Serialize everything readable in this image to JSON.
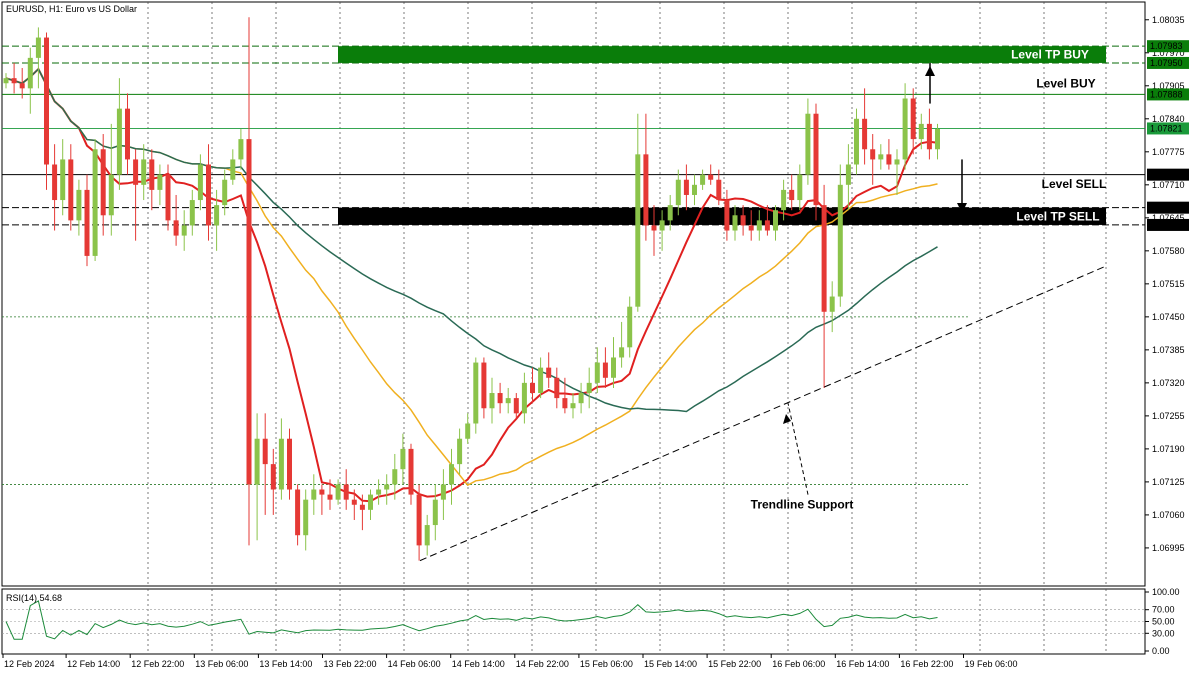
{
  "chart_data": {
    "type": "candlestick",
    "title": "EURUSD, H1:  Euro vs US Dollar",
    "y_range": [
      1.0692,
      1.0807
    ],
    "y_ticks": [
      "1.08035",
      "1.07970",
      "1.07905",
      "1.07840",
      "1.07775",
      "1.07710",
      "1.07645",
      "1.07580",
      "1.07515",
      "1.07450",
      "1.07385",
      "1.07320",
      "1.07255",
      "1.07190",
      "1.07125",
      "1.07060",
      "1.06995"
    ],
    "x_ticks": [
      "12 Feb 2024",
      "12 Feb 14:00",
      "12 Feb 22:00",
      "13 Feb 06:00",
      "13 Feb 14:00",
      "13 Feb 22:00",
      "14 Feb 06:00",
      "14 Feb 14:00",
      "14 Feb 22:00",
      "15 Feb 06:00",
      "15 Feb 14:00",
      "15 Feb 22:00",
      "16 Feb 06:00",
      "16 Feb 14:00",
      "16 Feb 22:00",
      "19 Feb 06:00"
    ],
    "levels": [
      {
        "name": "Level TP BUY",
        "price": "1.07983",
        "value": 1.07983,
        "color": "#008000"
      },
      {
        "name": "Level BUY",
        "price": "1.07888",
        "value": 1.07888,
        "color": "#008000"
      },
      {
        "name": "",
        "price": "1.07821",
        "value": 1.07821,
        "color": "#1a9a3a"
      },
      {
        "name": "Level SELL",
        "price": "1.07730",
        "value": 1.0773,
        "color": "#000000"
      },
      {
        "name": "",
        "price": "1.07665",
        "value": 1.07665,
        "color": "#000000"
      },
      {
        "name": "Level TP SELL",
        "price": "1.07631",
        "value": 1.07631,
        "color": "#000000"
      }
    ],
    "extra_price_labels": [
      "1.07950"
    ],
    "annotations": [
      "Trendline Support"
    ],
    "candles": [
      [
        1.0791,
        1.0793,
        1.079,
        1.0792
      ],
      [
        1.0792,
        1.0795,
        1.0789,
        1.0791
      ],
      [
        1.0791,
        1.0794,
        1.0788,
        1.079
      ],
      [
        1.079,
        1.0798,
        1.0785,
        1.0796
      ],
      [
        1.0796,
        1.0802,
        1.079,
        1.08
      ],
      [
        1.08,
        1.0801,
        1.077,
        1.0775
      ],
      [
        1.0775,
        1.0779,
        1.0762,
        1.0768
      ],
      [
        1.0768,
        1.078,
        1.0765,
        1.0776
      ],
      [
        1.0776,
        1.0779,
        1.0762,
        1.0764
      ],
      [
        1.0764,
        1.0772,
        1.0761,
        1.077
      ],
      [
        1.077,
        1.0773,
        1.0755,
        1.0757
      ],
      [
        1.0757,
        1.078,
        1.0756,
        1.0778
      ],
      [
        1.0778,
        1.0781,
        1.0761,
        1.0765
      ],
      [
        1.0765,
        1.0783,
        1.0761,
        1.0773
      ],
      [
        1.0773,
        1.0792,
        1.077,
        1.0786
      ],
      [
        1.0786,
        1.0789,
        1.0773,
        1.0776
      ],
      [
        1.0776,
        1.0778,
        1.076,
        1.0771
      ],
      [
        1.0771,
        1.0779,
        1.0768,
        1.0776
      ],
      [
        1.0776,
        1.0778,
        1.0766,
        1.077
      ],
      [
        1.077,
        1.0775,
        1.0767,
        1.0773
      ],
      [
        1.0773,
        1.0775,
        1.0762,
        1.0764
      ],
      [
        1.0764,
        1.0769,
        1.0759,
        1.0761
      ],
      [
        1.0761,
        1.0766,
        1.0758,
        1.0763
      ],
      [
        1.0763,
        1.077,
        1.0761,
        1.0768
      ],
      [
        1.0768,
        1.0777,
        1.0766,
        1.0775
      ],
      [
        1.0775,
        1.0779,
        1.076,
        1.0763
      ],
      [
        1.0763,
        1.077,
        1.0758,
        1.0767
      ],
      [
        1.0767,
        1.0774,
        1.0765,
        1.0772
      ],
      [
        1.0772,
        1.0778,
        1.0771,
        1.0776
      ],
      [
        1.0776,
        1.0782,
        1.0774,
        1.078
      ],
      [
        1.078,
        1.0804,
        1.07,
        1.0712
      ],
      [
        1.0712,
        1.0726,
        1.0701,
        1.0721
      ],
      [
        1.0721,
        1.0726,
        1.0706,
        1.0716
      ],
      [
        1.0716,
        1.0719,
        1.0706,
        1.0711
      ],
      [
        1.0711,
        1.0725,
        1.0709,
        1.0721
      ],
      [
        1.0721,
        1.0723,
        1.0709,
        1.0711
      ],
      [
        1.0711,
        1.0712,
        1.07,
        1.0702
      ],
      [
        1.0702,
        1.0711,
        1.0699,
        1.0709
      ],
      [
        1.0709,
        1.0714,
        1.0706,
        1.0711
      ],
      [
        1.0711,
        1.0712,
        1.0706,
        1.071
      ],
      [
        1.071,
        1.0713,
        1.0707,
        1.0709
      ],
      [
        1.0709,
        1.0713,
        1.0708,
        1.0712
      ],
      [
        1.0712,
        1.0715,
        1.0707,
        1.0709
      ],
      [
        1.0709,
        1.0711,
        1.0705,
        1.0708
      ],
      [
        1.0708,
        1.071,
        1.0703,
        1.0707
      ],
      [
        1.0707,
        1.0711,
        1.0705,
        1.071
      ],
      [
        1.071,
        1.0713,
        1.0708,
        1.0711
      ],
      [
        1.0711,
        1.0714,
        1.0708,
        1.0712
      ],
      [
        1.0712,
        1.0718,
        1.0709,
        1.0715
      ],
      [
        1.0715,
        1.0722,
        1.0712,
        1.0719
      ],
      [
        1.0719,
        1.072,
        1.0708,
        1.071
      ],
      [
        1.071,
        1.0712,
        1.0697,
        1.07
      ],
      [
        1.07,
        1.0706,
        1.0698,
        1.0704
      ],
      [
        1.0704,
        1.0712,
        1.0701,
        1.0709
      ],
      [
        1.0709,
        1.0715,
        1.0705,
        1.0712
      ],
      [
        1.0712,
        1.0719,
        1.0708,
        1.0716
      ],
      [
        1.0716,
        1.0723,
        1.0714,
        1.0721
      ],
      [
        1.0721,
        1.0726,
        1.072,
        1.0724
      ],
      [
        1.0724,
        1.0737,
        1.0722,
        1.0736
      ],
      [
        1.0736,
        1.0737,
        1.0725,
        1.0727
      ],
      [
        1.0727,
        1.0733,
        1.0724,
        1.073
      ],
      [
        1.073,
        1.0732,
        1.0726,
        1.0728
      ],
      [
        1.0728,
        1.0731,
        1.0726,
        1.0729
      ],
      [
        1.0729,
        1.073,
        1.0725,
        1.0726
      ],
      [
        1.0726,
        1.0734,
        1.0724,
        1.0732
      ],
      [
        1.0732,
        1.0735,
        1.0728,
        1.073
      ],
      [
        1.073,
        1.0737,
        1.0729,
        1.0735
      ],
      [
        1.0735,
        1.0738,
        1.0731,
        1.0733
      ],
      [
        1.0733,
        1.0735,
        1.0727,
        1.0729
      ],
      [
        1.0729,
        1.0733,
        1.0726,
        1.0727
      ],
      [
        1.0727,
        1.073,
        1.0725,
        1.0728
      ],
      [
        1.0728,
        1.0732,
        1.0726,
        1.073
      ],
      [
        1.073,
        1.0735,
        1.0727,
        1.0732
      ],
      [
        1.0732,
        1.0739,
        1.073,
        1.0736
      ],
      [
        1.0736,
        1.0739,
        1.0731,
        1.0733
      ],
      [
        1.0733,
        1.0741,
        1.0731,
        1.0737
      ],
      [
        1.0737,
        1.0744,
        1.0735,
        1.0739
      ],
      [
        1.0739,
        1.0749,
        1.0737,
        1.0747
      ],
      [
        1.0747,
        1.0785,
        1.0746,
        1.0777
      ],
      [
        1.0777,
        1.0785,
        1.076,
        1.0763
      ],
      [
        1.0763,
        1.0767,
        1.0757,
        1.0762
      ],
      [
        1.0762,
        1.0766,
        1.0758,
        1.0764
      ],
      [
        1.0764,
        1.0769,
        1.0762,
        1.0767
      ],
      [
        1.0767,
        1.0774,
        1.0765,
        1.0772
      ],
      [
        1.0772,
        1.0775,
        1.0766,
        1.0769
      ],
      [
        1.0769,
        1.0773,
        1.0767,
        1.0771
      ],
      [
        1.0771,
        1.0774,
        1.077,
        1.0773
      ],
      [
        1.0773,
        1.0775,
        1.0771,
        1.0772
      ],
      [
        1.0772,
        1.0774,
        1.0767,
        1.0768
      ],
      [
        1.0768,
        1.077,
        1.076,
        1.0762
      ],
      [
        1.0762,
        1.0767,
        1.076,
        1.0765
      ],
      [
        1.0765,
        1.0767,
        1.0761,
        1.0763
      ],
      [
        1.0763,
        1.0766,
        1.076,
        1.0762
      ],
      [
        1.0762,
        1.0766,
        1.076,
        1.0764
      ],
      [
        1.0764,
        1.0767,
        1.0761,
        1.0762
      ],
      [
        1.0762,
        1.0767,
        1.076,
        1.0766
      ],
      [
        1.0766,
        1.0772,
        1.0764,
        1.077
      ],
      [
        1.077,
        1.0773,
        1.0766,
        1.0768
      ],
      [
        1.0768,
        1.0775,
        1.0766,
        1.0773
      ],
      [
        1.0773,
        1.0788,
        1.0771,
        1.0785
      ],
      [
        1.0785,
        1.0787,
        1.0764,
        1.0767
      ],
      [
        1.0767,
        1.0771,
        1.0731,
        1.0746
      ],
      [
        1.0746,
        1.0752,
        1.0742,
        1.0749
      ],
      [
        1.0749,
        1.0775,
        1.0747,
        1.0771
      ],
      [
        1.0771,
        1.0779,
        1.0766,
        1.0775
      ],
      [
        1.0775,
        1.0786,
        1.0773,
        1.0784
      ],
      [
        1.0784,
        1.079,
        1.0775,
        1.0778
      ],
      [
        1.0778,
        1.0781,
        1.0771,
        1.0776
      ],
      [
        1.0776,
        1.0779,
        1.0774,
        1.0777
      ],
      [
        1.0777,
        1.078,
        1.0774,
        1.0775
      ],
      [
        1.0775,
        1.0778,
        1.0769,
        1.0776
      ],
      [
        1.0776,
        1.0791,
        1.0774,
        1.0788
      ],
      [
        1.0788,
        1.079,
        1.0777,
        1.078
      ],
      [
        1.078,
        1.0785,
        1.0778,
        1.0783
      ],
      [
        1.0783,
        1.0786,
        1.0776,
        1.0778
      ],
      [
        1.0778,
        1.0783,
        1.0776,
        1.0782
      ]
    ],
    "rsi_label": "RSI(14) 54.68",
    "rsi_ticks": [
      "100.00",
      "70.00",
      "50.00",
      "30.00",
      "0.00"
    ],
    "rsi_ylim": [
      0,
      100
    ]
  }
}
